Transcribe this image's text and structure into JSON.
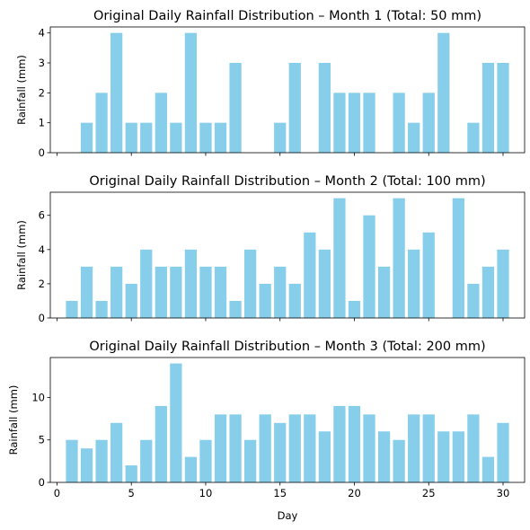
{
  "chart_data": [
    {
      "type": "bar",
      "title": "Original Daily Rainfall Distribution – Month 1 (Total: 50 mm)",
      "xlabel": "",
      "ylabel": "Rainfall (mm)",
      "bar_color": "#87ceeb",
      "x": [
        1,
        2,
        3,
        4,
        5,
        6,
        7,
        8,
        9,
        10,
        11,
        12,
        13,
        14,
        15,
        16,
        17,
        18,
        19,
        20,
        21,
        22,
        23,
        24,
        25,
        26,
        27,
        28,
        29,
        30
      ],
      "values": [
        0,
        1,
        2,
        4,
        1,
        1,
        2,
        1,
        4,
        1,
        1,
        3,
        0,
        0,
        1,
        3,
        0,
        3,
        2,
        2,
        2,
        0,
        2,
        1,
        2,
        4,
        0,
        1,
        3,
        3
      ],
      "xlim": [
        -0.45,
        31.45
      ],
      "ylim": [
        0,
        4.2
      ],
      "yticks": [
        0,
        1,
        2,
        3,
        4
      ],
      "xticks": [
        0,
        5,
        10,
        15,
        20,
        25,
        30
      ],
      "show_xtick_labels": false
    },
    {
      "type": "bar",
      "title": "Original Daily Rainfall Distribution – Month 2 (Total: 100 mm)",
      "xlabel": "",
      "ylabel": "Rainfall (mm)",
      "bar_color": "#87ceeb",
      "x": [
        1,
        2,
        3,
        4,
        5,
        6,
        7,
        8,
        9,
        10,
        11,
        12,
        13,
        14,
        15,
        16,
        17,
        18,
        19,
        20,
        21,
        22,
        23,
        24,
        25,
        26,
        27,
        28,
        29,
        30
      ],
      "values": [
        1,
        3,
        1,
        3,
        2,
        4,
        3,
        3,
        4,
        3,
        3,
        1,
        4,
        2,
        3,
        2,
        5,
        4,
        7,
        1,
        6,
        3,
        7,
        4,
        5,
        0,
        7,
        2,
        3,
        4
      ],
      "xlim": [
        -0.45,
        31.45
      ],
      "ylim": [
        0,
        7.35
      ],
      "yticks": [
        0,
        2,
        4,
        6
      ],
      "xticks": [
        0,
        5,
        10,
        15,
        20,
        25,
        30
      ],
      "show_xtick_labels": false
    },
    {
      "type": "bar",
      "title": "Original Daily Rainfall Distribution – Month 3 (Total: 200 mm)",
      "xlabel": "Day",
      "ylabel": "Rainfall (mm)",
      "bar_color": "#87ceeb",
      "x": [
        1,
        2,
        3,
        4,
        5,
        6,
        7,
        8,
        9,
        10,
        11,
        12,
        13,
        14,
        15,
        16,
        17,
        18,
        19,
        20,
        21,
        22,
        23,
        24,
        25,
        26,
        27,
        28,
        29,
        30
      ],
      "values": [
        5,
        4,
        5,
        7,
        2,
        5,
        9,
        14,
        3,
        5,
        8,
        8,
        5,
        8,
        7,
        8,
        8,
        6,
        9,
        9,
        8,
        6,
        5,
        8,
        8,
        6,
        6,
        8,
        3,
        7
      ],
      "xlim": [
        -0.45,
        31.45
      ],
      "ylim": [
        0,
        14.7
      ],
      "yticks": [
        0,
        5,
        10
      ],
      "xticks": [
        0,
        5,
        10,
        15,
        20,
        25,
        30
      ],
      "show_xtick_labels": true
    }
  ]
}
